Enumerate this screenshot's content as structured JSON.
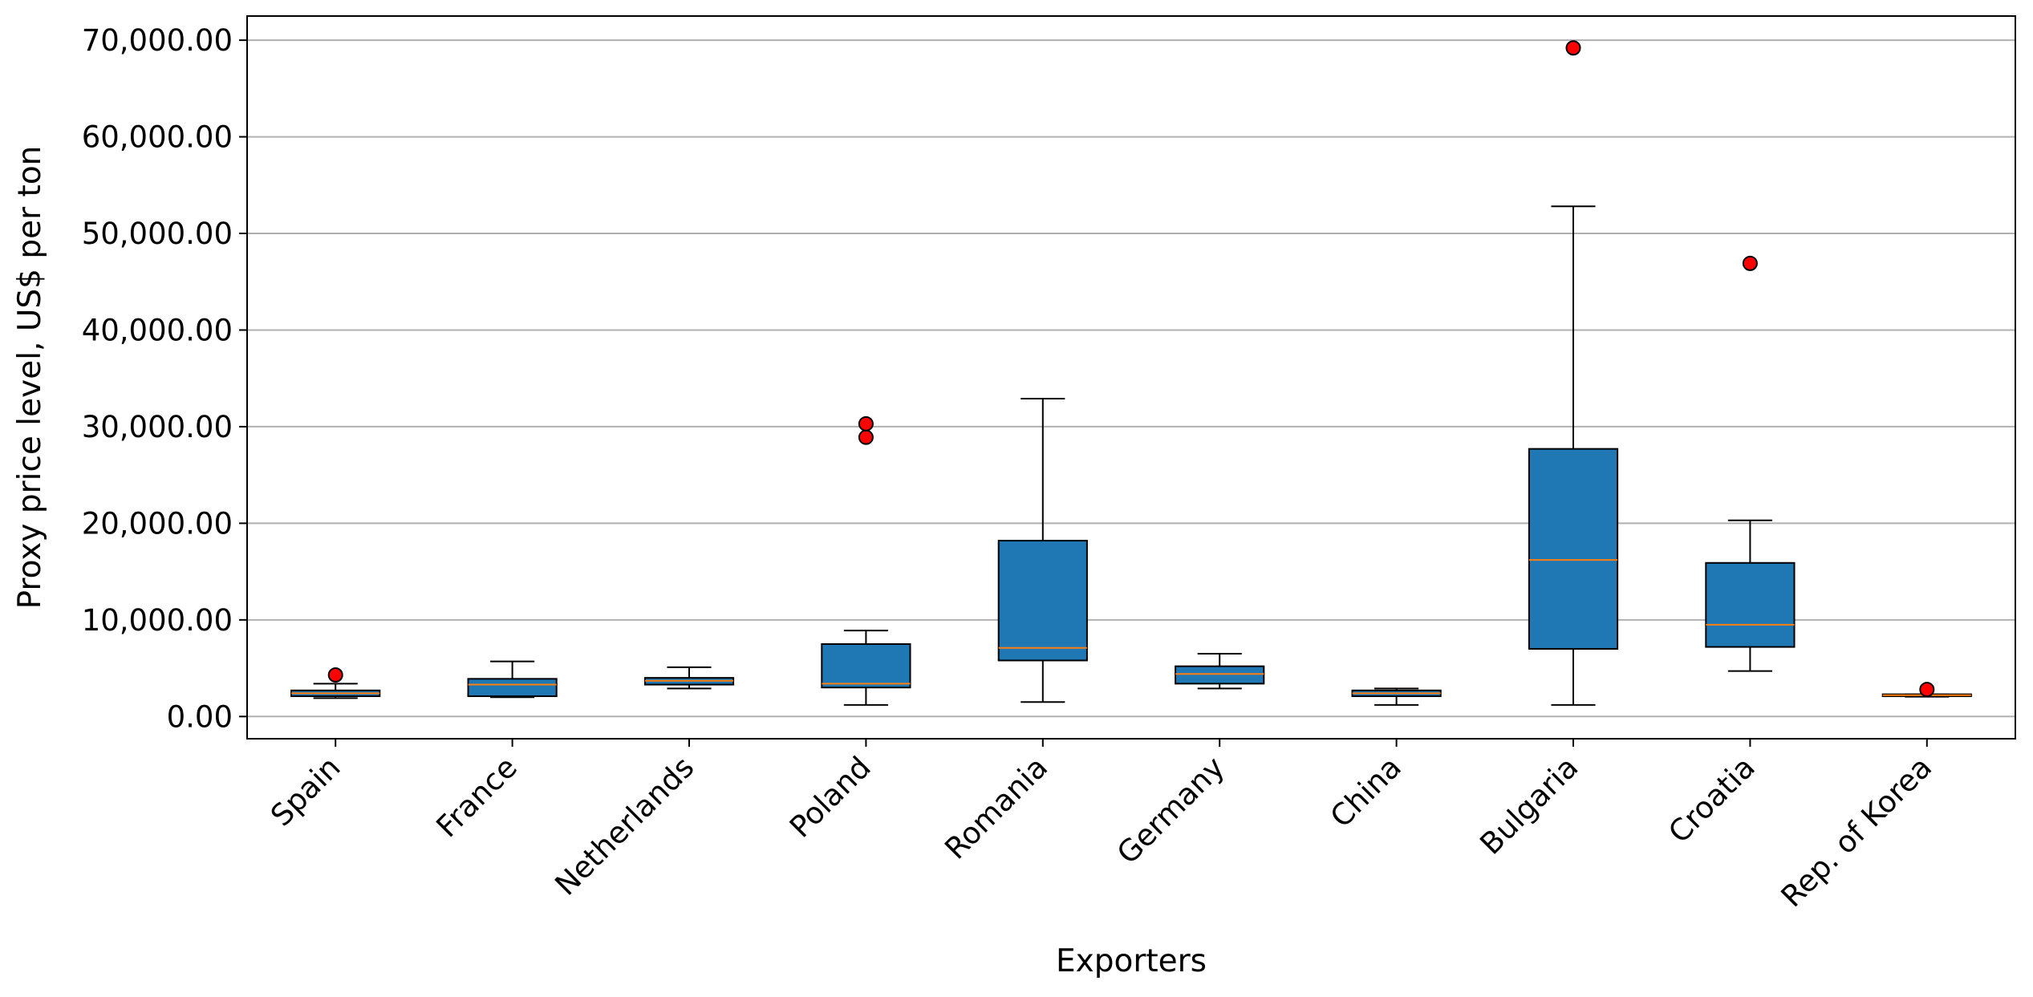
{
  "chart_data": {
    "type": "box",
    "title": "",
    "xlabel": "Exporters",
    "ylabel": "Proxy price level, US$ per ton",
    "ylim": [
      -2300,
      72500
    ],
    "yticks": [
      0,
      10000,
      20000,
      30000,
      40000,
      50000,
      60000,
      70000
    ],
    "ytick_labels": [
      "0.00",
      "10,000.00",
      "20,000.00",
      "30,000.00",
      "40,000.00",
      "50,000.00",
      "60,000.00",
      "70,000.00"
    ],
    "grid": "horizontal",
    "colors": {
      "box": "#1f77b4",
      "median": "#ff7f0e",
      "outlier": "#ff0000",
      "grid": "#b0b0b0"
    },
    "categories": [
      "Spain",
      "France",
      "Netherlands",
      "Poland",
      "Romania",
      "Germany",
      "China",
      "Bulgaria",
      "Croatia",
      "Rep. of Korea"
    ],
    "boxes": [
      {
        "whisker_low": 1900,
        "q1": 2100,
        "median": 2400,
        "q3": 2700,
        "whisker_high": 3400,
        "outliers": [
          4300
        ]
      },
      {
        "whisker_low": 2000,
        "q1": 2100,
        "median": 3300,
        "q3": 3900,
        "whisker_high": 5700,
        "outliers": []
      },
      {
        "whisker_low": 2900,
        "q1": 3300,
        "median": 3700,
        "q3": 4000,
        "whisker_high": 5100,
        "outliers": []
      },
      {
        "whisker_low": 1200,
        "q1": 3000,
        "median": 3400,
        "q3": 7500,
        "whisker_high": 8900,
        "outliers": [
          28900,
          30300
        ]
      },
      {
        "whisker_low": 1500,
        "q1": 5800,
        "median": 7100,
        "q3": 18200,
        "whisker_high": 32900,
        "outliers": []
      },
      {
        "whisker_low": 2900,
        "q1": 3400,
        "median": 4400,
        "q3": 5200,
        "whisker_high": 6500,
        "outliers": []
      },
      {
        "whisker_low": 1200,
        "q1": 2100,
        "median": 2400,
        "q3": 2700,
        "whisker_high": 2900,
        "outliers": []
      },
      {
        "whisker_low": 1200,
        "q1": 7000,
        "median": 16200,
        "q3": 27700,
        "whisker_high": 52800,
        "outliers": [
          69200
        ]
      },
      {
        "whisker_low": 4700,
        "q1": 7200,
        "median": 9500,
        "q3": 15900,
        "whisker_high": 20300,
        "outliers": [
          46900
        ]
      },
      {
        "whisker_low": 2050,
        "q1": 2100,
        "median": 2200,
        "q3": 2300,
        "whisker_high": 2300,
        "outliers": [
          2800
        ]
      }
    ]
  }
}
